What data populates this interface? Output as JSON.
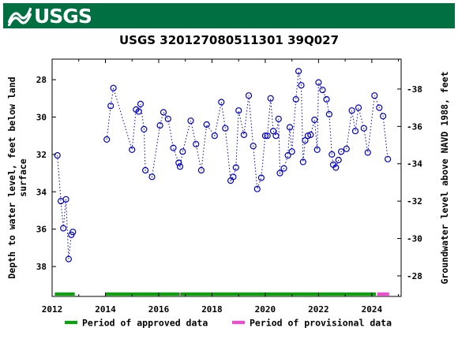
{
  "banner": {
    "logo_text": "USGS",
    "logo_icon": "usgs-wave-icon",
    "color": "#006f41"
  },
  "chart_data": {
    "type": "line",
    "title": "USGS 320127080511301 39Q027",
    "ylabel": "Depth to water level, feet below land surface",
    "ylabel_lines": [
      "Depth to water level, feet below land",
      "surface"
    ],
    "y2label": "Groundwater level above NAVD 1988, feet",
    "xlim": [
      2012,
      2025.1
    ],
    "ylim": [
      39.6,
      26.9
    ],
    "y2lim": [
      -26.9,
      -39.6
    ],
    "x_ticks": [
      2012,
      2014,
      2016,
      2018,
      2020,
      2022,
      2024
    ],
    "y_ticks": [
      28,
      30,
      32,
      34,
      36,
      38
    ],
    "y2_ticks": [
      -28,
      -30,
      -32,
      -34,
      -36,
      -38
    ],
    "series_color": "#0000cc",
    "series": [
      {
        "style": "dotted-line-with-circle-markers",
        "segments": [
          [
            [
              2012.2,
              32.05
            ],
            [
              2012.33,
              34.5
            ],
            [
              2012.42,
              35.95
            ],
            [
              2012.52,
              34.4
            ],
            [
              2012.62,
              37.6
            ],
            [
              2012.72,
              36.3
            ],
            [
              2012.78,
              36.15
            ]
          ],
          [
            [
              2014.05,
              31.2
            ],
            [
              2014.2,
              29.4
            ],
            [
              2014.3,
              28.45
            ],
            [
              2015.0,
              31.75
            ],
            [
              2015.15,
              29.6
            ],
            [
              2015.25,
              29.7
            ],
            [
              2015.32,
              29.3
            ],
            [
              2015.45,
              30.65
            ],
            [
              2015.5,
              32.85
            ],
            [
              2015.75,
              33.2
            ],
            [
              2016.05,
              30.45
            ],
            [
              2016.18,
              29.75
            ],
            [
              2016.35,
              30.1
            ],
            [
              2016.55,
              31.65
            ],
            [
              2016.75,
              32.45
            ],
            [
              2016.8,
              32.65
            ],
            [
              2016.9,
              31.85
            ],
            [
              2017.2,
              30.2
            ],
            [
              2017.4,
              31.45
            ],
            [
              2017.6,
              32.85
            ],
            [
              2017.8,
              30.4
            ],
            [
              2018.1,
              31.0
            ],
            [
              2018.35,
              29.2
            ],
            [
              2018.5,
              30.6
            ],
            [
              2018.7,
              33.4
            ],
            [
              2018.8,
              33.2
            ],
            [
              2018.9,
              32.7
            ],
            [
              2019.0,
              29.65
            ],
            [
              2019.2,
              30.95
            ],
            [
              2019.38,
              28.85
            ],
            [
              2019.55,
              31.55
            ],
            [
              2019.7,
              33.85
            ],
            [
              2019.85,
              33.25
            ],
            [
              2020.0,
              31.0
            ],
            [
              2020.08,
              31.0
            ],
            [
              2020.2,
              29.0
            ],
            [
              2020.3,
              30.75
            ],
            [
              2020.4,
              31.0
            ],
            [
              2020.5,
              30.1
            ],
            [
              2020.55,
              33.0
            ],
            [
              2020.7,
              32.75
            ],
            [
              2020.85,
              32.05
            ],
            [
              2020.92,
              30.55
            ],
            [
              2021.0,
              31.85
            ],
            [
              2021.15,
              29.05
            ],
            [
              2021.25,
              27.55
            ],
            [
              2021.35,
              28.3
            ],
            [
              2021.42,
              32.4
            ],
            [
              2021.5,
              31.25
            ],
            [
              2021.6,
              31.0
            ],
            [
              2021.7,
              30.95
            ],
            [
              2021.85,
              30.15
            ],
            [
              2021.95,
              31.75
            ],
            [
              2022.0,
              28.15
            ],
            [
              2022.15,
              28.55
            ],
            [
              2022.3,
              29.05
            ],
            [
              2022.4,
              29.85
            ],
            [
              2022.5,
              32.0
            ],
            [
              2022.55,
              32.55
            ],
            [
              2022.65,
              32.7
            ],
            [
              2022.75,
              32.3
            ],
            [
              2022.85,
              31.85
            ],
            [
              2023.05,
              31.7
            ],
            [
              2023.25,
              29.65
            ],
            [
              2023.38,
              30.75
            ],
            [
              2023.5,
              29.5
            ],
            [
              2023.7,
              30.6
            ],
            [
              2023.85,
              31.9
            ],
            [
              2024.1,
              28.85
            ],
            [
              2024.28,
              29.5
            ],
            [
              2024.42,
              29.95
            ],
            [
              2024.6,
              32.25
            ]
          ]
        ]
      }
    ],
    "periods": [
      {
        "label": "Period of approved data",
        "color": "#00aa00",
        "ranges": [
          [
            2012.1,
            2012.85
          ],
          [
            2014.0,
            2016.78
          ],
          [
            2016.82,
            2024.15
          ]
        ]
      },
      {
        "label": "Period of provisional data",
        "color": "#ff44dd",
        "ranges": [
          [
            2016.78,
            2016.82
          ],
          [
            2024.2,
            2024.65
          ]
        ]
      }
    ],
    "legend_placement": "bottom",
    "grid": false
  }
}
